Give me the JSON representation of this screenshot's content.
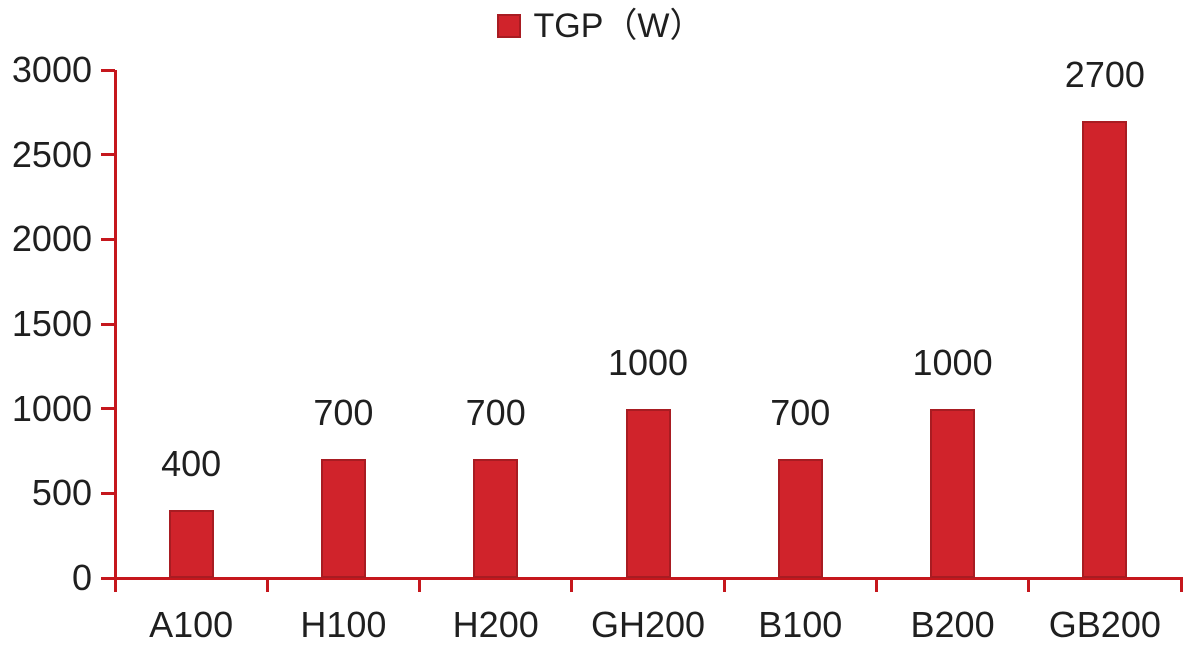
{
  "chart_data": {
    "type": "bar",
    "title": "",
    "legend": [
      {
        "label": "TGP（W）",
        "color": "#d0232b"
      }
    ],
    "legend_position": "top-center",
    "categories": [
      "A100",
      "H100",
      "H200",
      "GH200",
      "B100",
      "B200",
      "GB200"
    ],
    "values": [
      400,
      700,
      700,
      1000,
      700,
      1000,
      2700
    ],
    "value_labels": [
      "400",
      "700",
      "700",
      "1000",
      "700",
      "1000",
      "2700"
    ],
    "xlabel": "",
    "ylabel": "",
    "ylim": [
      0,
      3000
    ],
    "ytick_step": 500,
    "ytick_labels": [
      "0",
      "500",
      "1000",
      "1500",
      "2000",
      "2500",
      "3000"
    ],
    "grid": false,
    "colors": {
      "bar_fill": "#d0232b",
      "bar_border": "#a81c22",
      "axis": "#c5171d",
      "text": "#1f1f1f",
      "background": "#ffffff"
    }
  }
}
